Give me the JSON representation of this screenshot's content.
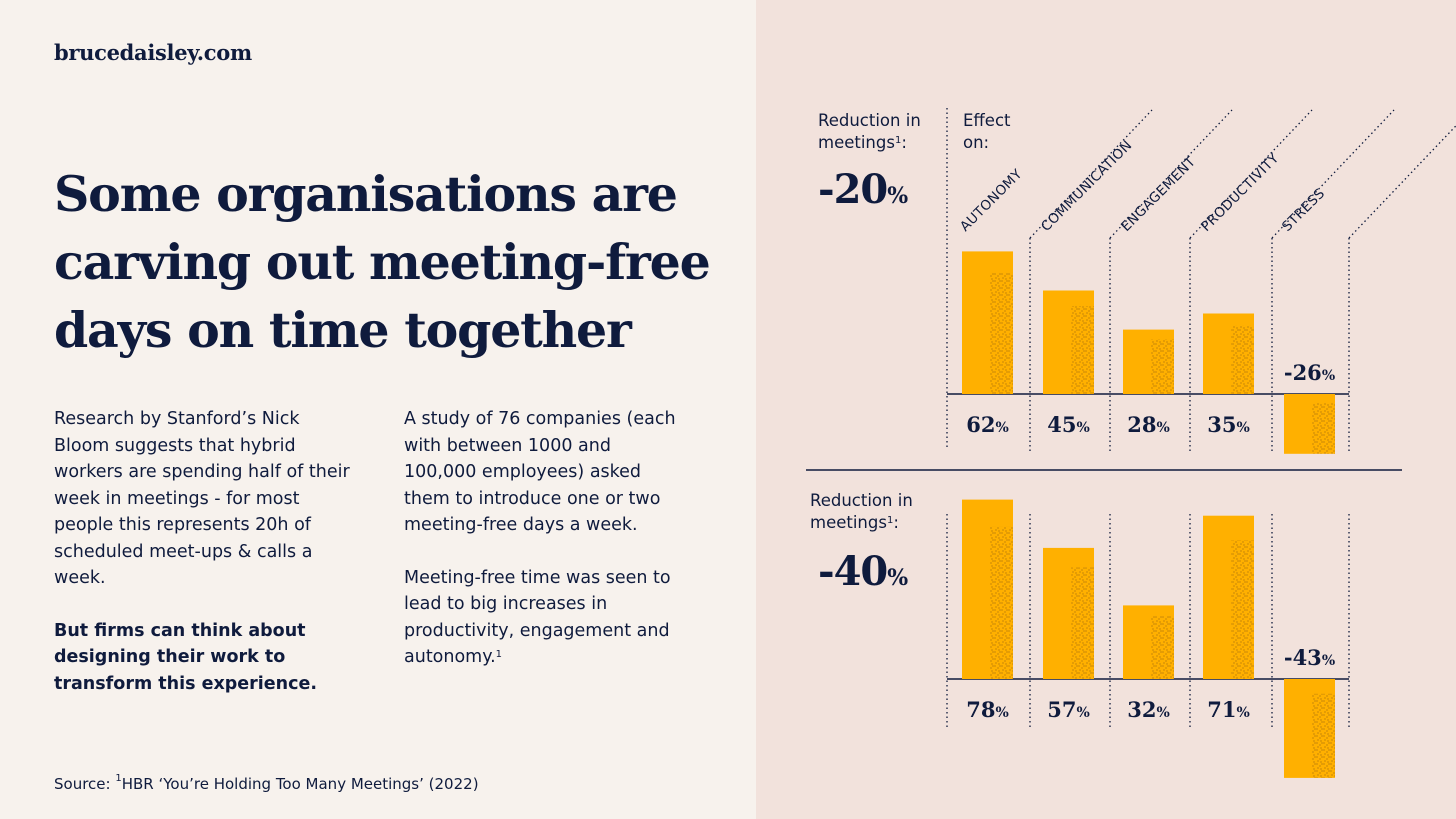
{
  "brand": "brucedaisley.com",
  "headline": "Some organisations are carving out meeting-free days on time together",
  "left_col": {
    "para1": "Research by Stanford’s Nick Bloom suggests that hybrid workers are spending half of their week in meetings - for most people this represents 20h of scheduled meet-ups & calls a week.",
    "para2": "But firms can think about designing their work to transform this experience."
  },
  "right_col": {
    "para1": "A study of 76 companies (each with between 1000 and 100,000 employees) asked them to introduce one or two meeting-free days a week.",
    "para2": "Meeting-free time was seen to lead to big increases in productivity, engagement and autonomy.",
    "para2_sup": "1"
  },
  "source": {
    "prefix": "Source: ",
    "sup": "1",
    "text": "HBR ‘You’re Holding Too Many Meetings’ (2022)"
  },
  "chart_header": {
    "reduction_line1": "Reduction in",
    "reduction_line2": "meetings",
    "reduction_sup": "1",
    "reduction_colon": ":",
    "effect_line1": "Effect",
    "effect_line2": "on:"
  },
  "colors": {
    "bar": "#ffb000",
    "text": "#0f1b3d",
    "panel": "#f2e2dc",
    "background": "#f7f2ed"
  },
  "chart_data": {
    "type": "bar",
    "categories": [
      "AUTONOMY",
      "COMMUNICATION",
      "ENGAGEMENT",
      "PRODUCTIVITY",
      "STRESS"
    ],
    "panels": [
      {
        "reduction_value": "-20",
        "reduction_unit": "%",
        "values": [
          62,
          45,
          28,
          35,
          -26
        ]
      },
      {
        "reduction_value": "-40",
        "reduction_unit": "%",
        "values": [
          78,
          57,
          32,
          71,
          -43
        ]
      }
    ]
  }
}
